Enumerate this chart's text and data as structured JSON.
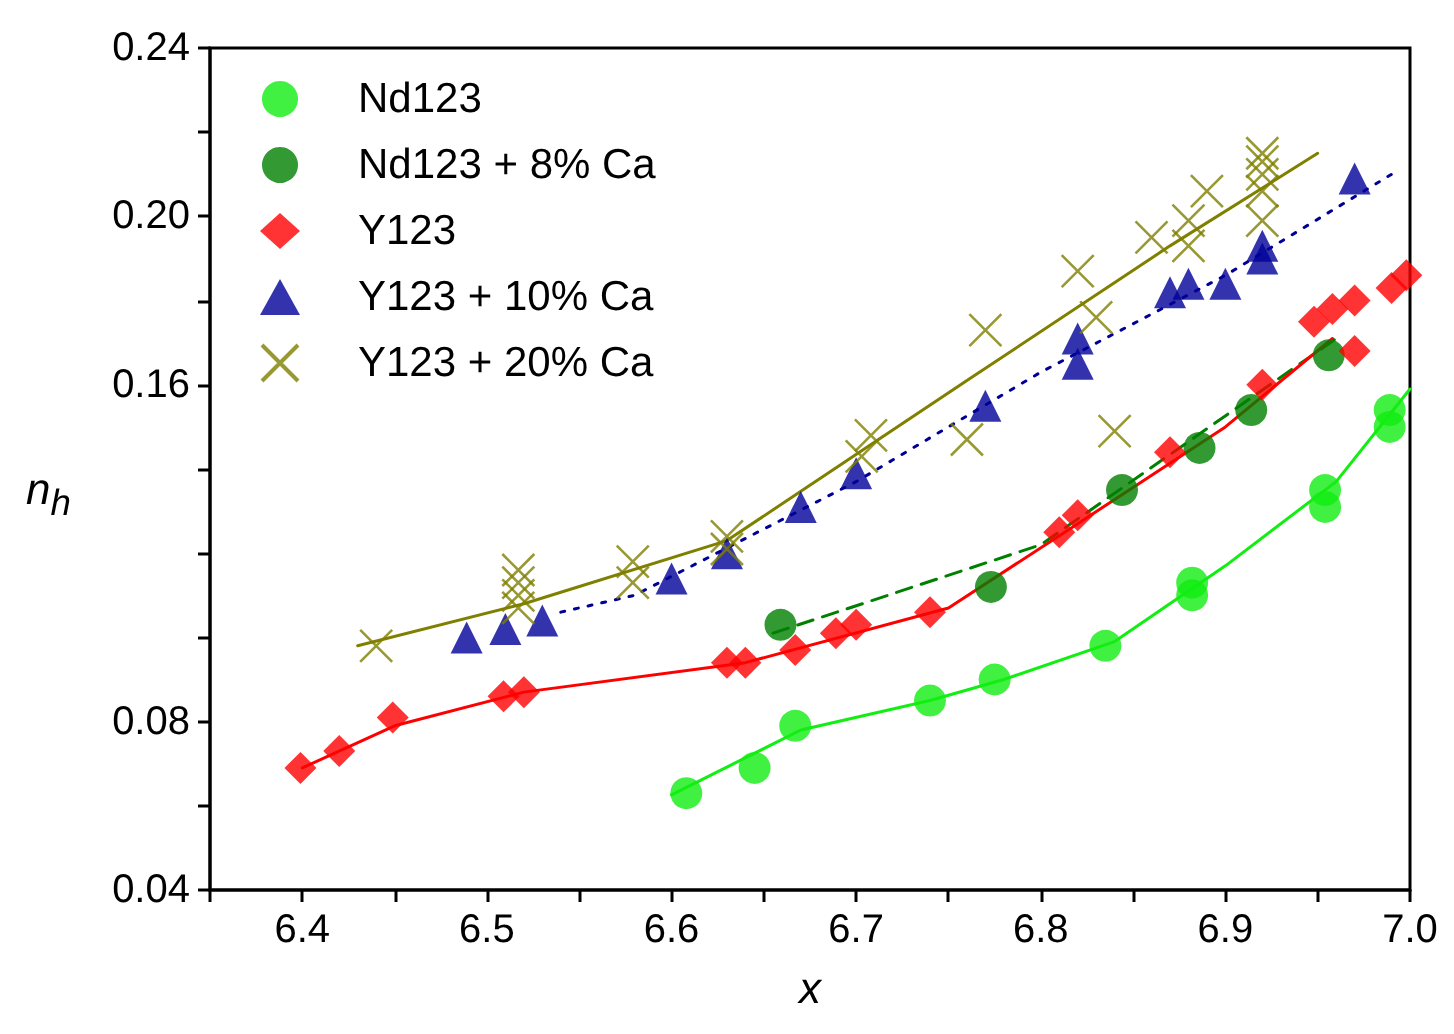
{
  "chart_data": {
    "type": "scatter",
    "xlabel": "x",
    "ylabel": "n$_{h}$",
    "xlim": [
      6.35,
      7.0
    ],
    "ylim": [
      0.04,
      0.24
    ],
    "xticks": [
      {
        "value": 6.35,
        "label": null
      },
      6.4,
      {
        "value": 6.45,
        "label": null
      },
      6.5,
      {
        "value": 6.55,
        "label": null
      },
      6.6,
      {
        "value": 6.65,
        "label": null
      },
      6.7,
      {
        "value": 6.75,
        "label": null
      },
      6.8,
      {
        "value": 6.85,
        "label": null
      },
      6.9,
      {
        "value": 6.95,
        "label": null
      },
      {
        "value": 7.0,
        "label": "7.0"
      }
    ],
    "yticks": [
      0.04,
      {
        "value": 0.06,
        "label": null
      },
      0.08,
      {
        "value": 0.1,
        "label": null
      },
      {
        "value": 0.12,
        "label": null
      },
      {
        "value": 0.14,
        "label": null
      },
      0.16,
      {
        "value": 0.18,
        "label": null
      },
      {
        "value": 0.2,
        "label": "0.20"
      },
      {
        "value": 0.22,
        "label": null
      },
      0.24
    ],
    "legend": "top left",
    "series": [
      {
        "name": "Nd123",
        "marker": "circle",
        "color": "#11ee11",
        "x": [
          6.608,
          6.645,
          6.667,
          6.74,
          6.775,
          6.835,
          6.882,
          6.882,
          6.954,
          6.954,
          6.989,
          6.989
        ],
        "values": [
          0.063,
          0.069,
          0.079,
          0.085,
          0.09,
          0.098,
          0.113,
          0.11,
          0.135,
          0.131,
          0.154,
          0.15
        ]
      },
      {
        "name": "Nd123 + 8% Ca",
        "marker": "circle",
        "color": "#008000",
        "x": [
          6.659,
          6.773,
          6.844,
          6.886,
          6.914,
          6.956
        ],
        "values": [
          0.103,
          0.112,
          0.135,
          0.145,
          0.154,
          0.167
        ]
      },
      {
        "name": "Y123",
        "marker": "diamond",
        "color": "#ff0000",
        "x": [
          6.399,
          6.42,
          6.449,
          6.509,
          6.52,
          6.63,
          6.64,
          6.667,
          6.689,
          6.7,
          6.74,
          6.81,
          6.82,
          6.87,
          6.92,
          6.948,
          6.958,
          6.97,
          6.97,
          6.99,
          6.998
        ],
        "values": [
          0.069,
          0.073,
          0.081,
          0.086,
          0.087,
          0.094,
          0.094,
          0.097,
          0.101,
          0.103,
          0.106,
          0.125,
          0.129,
          0.144,
          0.16,
          0.175,
          0.178,
          0.18,
          0.168,
          0.183,
          0.186
        ]
      },
      {
        "name": "Y123 + 10% Ca",
        "marker": "triangle",
        "color": "#000099",
        "x": [
          6.489,
          6.51,
          6.53,
          6.6,
          6.63,
          6.67,
          6.7,
          6.77,
          6.82,
          6.82,
          6.87,
          6.88,
          6.9,
          6.92,
          6.92,
          6.97
        ],
        "values": [
          0.1,
          0.102,
          0.104,
          0.114,
          0.12,
          0.131,
          0.139,
          0.155,
          0.171,
          0.165,
          0.182,
          0.184,
          0.184,
          0.193,
          0.19,
          0.209
        ]
      },
      {
        "name": "Y123 + 20% Ca",
        "marker": "cross",
        "color": "#808000",
        "x": [
          6.44,
          6.517,
          6.517,
          6.517,
          6.517,
          6.579,
          6.579,
          6.63,
          6.63,
          6.703,
          6.708,
          6.76,
          6.77,
          6.82,
          6.83,
          6.84,
          6.86,
          6.88,
          6.88,
          6.89,
          6.92,
          6.92,
          6.92,
          6.92,
          6.92
        ],
        "values": [
          0.098,
          0.113,
          0.11,
          0.107,
          0.116,
          0.118,
          0.113,
          0.124,
          0.121,
          0.143,
          0.148,
          0.147,
          0.173,
          0.187,
          0.176,
          0.149,
          0.195,
          0.199,
          0.193,
          0.206,
          0.215,
          0.213,
          0.21,
          0.206,
          0.199
        ]
      },
      {
        "type": "line",
        "marker": "none",
        "line_style": "solid",
        "color": "#11ee11",
        "x": [
          6.6,
          6.67,
          6.74,
          6.78,
          6.84,
          6.9,
          6.96,
          7.0
        ],
        "values": [
          0.0626,
          0.078,
          0.085,
          0.09,
          0.099,
          0.117,
          0.137,
          0.159
        ]
      },
      {
        "type": "line",
        "marker": "none",
        "line_style": "dashed",
        "color": "#008000",
        "x": [
          6.655,
          6.8,
          6.96
        ],
        "values": [
          0.101,
          0.122,
          0.171
        ]
      },
      {
        "type": "line",
        "marker": "none",
        "line_style": "solid",
        "color": "#ff0000",
        "x": [
          6.4,
          6.45,
          6.52,
          6.64,
          6.75,
          6.82,
          6.9,
          6.958
        ],
        "values": [
          0.069,
          0.079,
          0.087,
          0.094,
          0.107,
          0.127,
          0.15,
          0.171
        ]
      },
      {
        "type": "line",
        "marker": "none",
        "line_style": "dotted",
        "color": "#000099",
        "x": [
          6.54,
          6.58,
          6.7,
          6.8,
          6.9,
          6.99
        ],
        "values": [
          0.106,
          0.11,
          0.137,
          0.163,
          0.186,
          0.21
        ]
      },
      {
        "type": "line",
        "marker": "none",
        "line_style": "solid",
        "color": "#808000",
        "x": [
          6.43,
          6.52,
          6.63,
          6.76,
          6.87,
          6.95
        ],
        "values": [
          0.098,
          0.108,
          0.123,
          0.161,
          0.193,
          0.215
        ]
      }
    ]
  }
}
